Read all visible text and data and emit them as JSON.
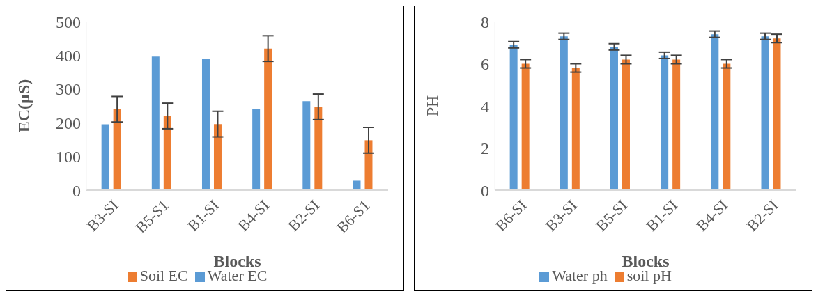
{
  "chart_data": [
    {
      "type": "bar",
      "categories": [
        "B3-SI",
        "B5-S1",
        "B1-SI",
        "B4-SI",
        "B2-SI",
        "B6-S1"
      ],
      "xlabel": "Blocks",
      "ylabel": "EC(µS)",
      "ylim": [
        0,
        500
      ],
      "yticks": [
        0,
        100,
        200,
        300,
        400,
        500
      ],
      "grid": false,
      "legend": "bottom",
      "series": [
        {
          "name": "Water EC",
          "color": "#5b9bd5",
          "values": [
            195,
            396,
            389,
            240,
            264,
            28
          ]
        },
        {
          "name": "Soil EC",
          "color": "#ed7d31",
          "values": [
            240,
            220,
            196,
            420,
            247,
            148
          ],
          "errors": [
            38,
            38,
            38,
            38,
            38,
            38
          ]
        }
      ]
    },
    {
      "type": "bar",
      "categories": [
        "B6-SI",
        "B3-SI",
        "B5-SI",
        "B1-SI",
        "B4-SI",
        "B2-SI"
      ],
      "xlabel": "Blocks",
      "ylabel": "PH",
      "ylim": [
        0,
        8
      ],
      "yticks": [
        0,
        2,
        4,
        6,
        8
      ],
      "grid": false,
      "legend": "bottom",
      "series": [
        {
          "name": "Water ph",
          "color": "#5b9bd5",
          "values": [
            6.9,
            7.3,
            6.8,
            6.4,
            7.4,
            7.3
          ],
          "errors": [
            0.15,
            0.15,
            0.15,
            0.15,
            0.15,
            0.15
          ]
        },
        {
          "name": "soil pH",
          "color": "#ed7d31",
          "values": [
            6.0,
            5.8,
            6.2,
            6.2,
            6.0,
            7.2
          ],
          "errors": [
            0.2,
            0.2,
            0.2,
            0.2,
            0.2,
            0.2
          ]
        }
      ]
    }
  ]
}
